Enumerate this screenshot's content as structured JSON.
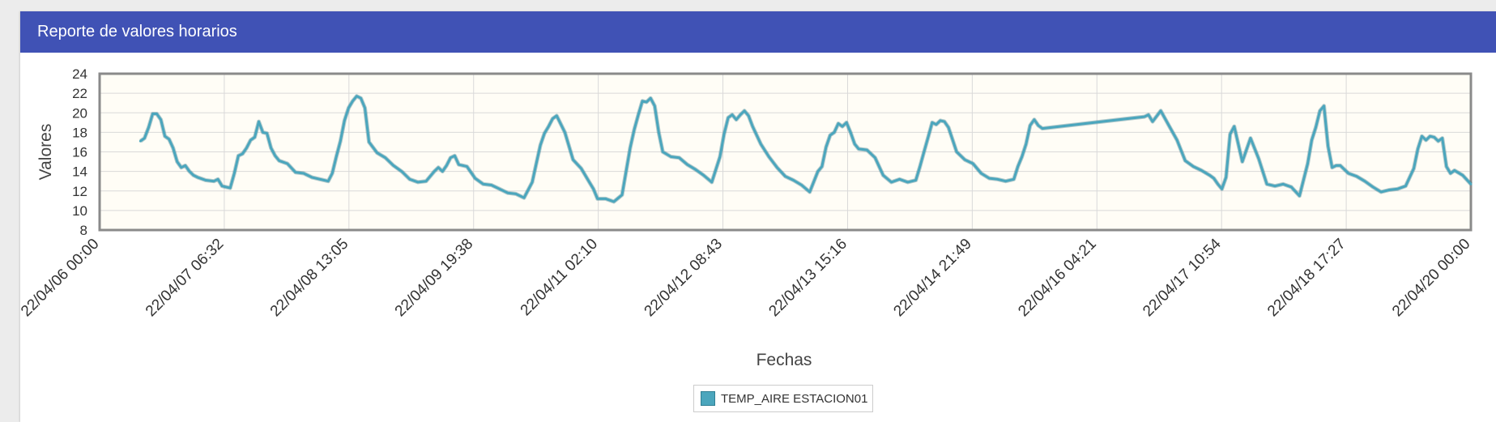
{
  "panel": {
    "title": "Reporte de valores horarios"
  },
  "colors": {
    "header": "#4052b5",
    "series": "#4ba6bd",
    "plot_background": "#fffdf6",
    "grid": "#d9d9d9",
    "frame": "#8a8a8a"
  },
  "chart_data": {
    "type": "line",
    "title": "",
    "xlabel": "Fechas",
    "ylabel": "Valores",
    "ylim": [
      8,
      24
    ],
    "yticks": [
      8,
      10,
      12,
      14,
      16,
      18,
      20,
      22,
      24
    ],
    "xlim": [
      "2022-04-06 00:00",
      "2022-04-20 00:00"
    ],
    "xticks": [
      "22/04/06 00:00",
      "22/04/07 06:32",
      "22/04/08 13:05",
      "22/04/09 19:38",
      "22/04/11 02:10",
      "22/04/12 08:43",
      "22/04/13 15:16",
      "22/04/14 21:49",
      "22/04/16 04:21",
      "22/04/17 10:54",
      "22/04/18 17:27",
      "22/04/20 00:00"
    ],
    "grid": true,
    "legend_position": "bottom-center",
    "series": [
      {
        "name": "TEMP_AIRE ESTACION01",
        "x": [
          "2022-04-06 10:00",
          "2022-04-06 11:00",
          "2022-04-06 12:00",
          "2022-04-06 13:00",
          "2022-04-06 14:00",
          "2022-04-06 15:00",
          "2022-04-06 16:00",
          "2022-04-06 17:00",
          "2022-04-06 18:00",
          "2022-04-06 19:00",
          "2022-04-06 20:00",
          "2022-04-06 21:00",
          "2022-04-06 22:00",
          "2022-04-06 23:00",
          "2022-04-07 00:00",
          "2022-04-07 02:00",
          "2022-04-07 04:00",
          "2022-04-07 05:00",
          "2022-04-07 06:00",
          "2022-04-07 07:00",
          "2022-04-07 08:00",
          "2022-04-07 09:00",
          "2022-04-07 10:00",
          "2022-04-07 11:00",
          "2022-04-07 12:00",
          "2022-04-07 13:00",
          "2022-04-07 14:00",
          "2022-04-07 15:00",
          "2022-04-07 16:00",
          "2022-04-07 17:00",
          "2022-04-07 18:00",
          "2022-04-07 19:00",
          "2022-04-07 20:00",
          "2022-04-07 22:00",
          "2022-04-08 00:00",
          "2022-04-08 02:00",
          "2022-04-08 04:00",
          "2022-04-08 06:00",
          "2022-04-08 08:00",
          "2022-04-08 09:00",
          "2022-04-08 10:00",
          "2022-04-08 11:00",
          "2022-04-08 12:00",
          "2022-04-08 13:00",
          "2022-04-08 14:00",
          "2022-04-08 15:00",
          "2022-04-08 16:00",
          "2022-04-08 17:00",
          "2022-04-08 18:00",
          "2022-04-08 20:00",
          "2022-04-08 22:00",
          "2022-04-09 00:00",
          "2022-04-09 02:00",
          "2022-04-09 04:00",
          "2022-04-09 06:00",
          "2022-04-09 08:00",
          "2022-04-09 10:00",
          "2022-04-09 11:00",
          "2022-04-09 12:00",
          "2022-04-09 13:00",
          "2022-04-09 14:00",
          "2022-04-09 15:00",
          "2022-04-09 16:00",
          "2022-04-09 18:00",
          "2022-04-09 20:00",
          "2022-04-09 22:00",
          "2022-04-10 00:00",
          "2022-04-10 02:00",
          "2022-04-10 04:00",
          "2022-04-10 06:00",
          "2022-04-10 08:00",
          "2022-04-10 10:00",
          "2022-04-10 11:00",
          "2022-04-10 12:00",
          "2022-04-10 13:00",
          "2022-04-10 14:00",
          "2022-04-10 15:00",
          "2022-04-10 16:00",
          "2022-04-10 18:00",
          "2022-04-10 20:00",
          "2022-04-10 22:00",
          "2022-04-11 00:00",
          "2022-04-11 01:00",
          "2022-04-11 02:00",
          "2022-04-11 04:00",
          "2022-04-11 06:00",
          "2022-04-11 08:00",
          "2022-04-11 09:00",
          "2022-04-11 10:00",
          "2022-04-11 11:00",
          "2022-04-11 12:00",
          "2022-04-11 13:00",
          "2022-04-11 14:00",
          "2022-04-11 15:00",
          "2022-04-11 16:00",
          "2022-04-11 17:00",
          "2022-04-11 18:00",
          "2022-04-11 20:00",
          "2022-04-11 22:00",
          "2022-04-12 00:00",
          "2022-04-12 02:00",
          "2022-04-12 04:00",
          "2022-04-12 06:00",
          "2022-04-12 08:00",
          "2022-04-12 09:00",
          "2022-04-12 10:00",
          "2022-04-12 11:00",
          "2022-04-12 12:00",
          "2022-04-12 13:00",
          "2022-04-12 14:00",
          "2022-04-12 15:00",
          "2022-04-12 16:00",
          "2022-04-12 18:00",
          "2022-04-12 20:00",
          "2022-04-12 22:00",
          "2022-04-13 00:00",
          "2022-04-13 02:00",
          "2022-04-13 04:00",
          "2022-04-13 06:00",
          "2022-04-13 08:00",
          "2022-04-13 09:00",
          "2022-04-13 10:00",
          "2022-04-13 11:00",
          "2022-04-13 12:00",
          "2022-04-13 13:00",
          "2022-04-13 14:00",
          "2022-04-13 15:00",
          "2022-04-13 16:00",
          "2022-04-13 17:00",
          "2022-04-13 18:00",
          "2022-04-13 20:00",
          "2022-04-13 22:00",
          "2022-04-14 00:00",
          "2022-04-14 02:00",
          "2022-04-14 04:00",
          "2022-04-14 06:00",
          "2022-04-14 08:00",
          "2022-04-14 09:00",
          "2022-04-14 10:00",
          "2022-04-14 11:00",
          "2022-04-14 12:00",
          "2022-04-14 13:00",
          "2022-04-14 14:00",
          "2022-04-14 15:00",
          "2022-04-14 16:00",
          "2022-04-14 18:00",
          "2022-04-14 20:00",
          "2022-04-14 22:00",
          "2022-04-15 00:00",
          "2022-04-15 02:00",
          "2022-04-15 04:00",
          "2022-04-15 06:00",
          "2022-04-15 08:00",
          "2022-04-15 09:00",
          "2022-04-15 10:00",
          "2022-04-15 11:00",
          "2022-04-15 12:00",
          "2022-04-15 13:00",
          "2022-04-15 14:00",
          "2022-04-15 15:00",
          "2022-04-16 16:00",
          "2022-04-16 17:00",
          "2022-04-16 18:00",
          "2022-04-16 20:00",
          "2022-04-16 22:00",
          "2022-04-17 00:00",
          "2022-04-17 02:00",
          "2022-04-17 04:00",
          "2022-04-17 06:00",
          "2022-04-17 08:00",
          "2022-04-17 09:00",
          "2022-04-17 10:00",
          "2022-04-17 11:00",
          "2022-04-17 12:00",
          "2022-04-17 13:00",
          "2022-04-17 14:00",
          "2022-04-17 16:00",
          "2022-04-17 18:00",
          "2022-04-17 20:00",
          "2022-04-17 22:00",
          "2022-04-18 00:00",
          "2022-04-18 02:00",
          "2022-04-18 04:00",
          "2022-04-18 06:00",
          "2022-04-18 08:00",
          "2022-04-18 09:00",
          "2022-04-18 10:00",
          "2022-04-18 11:00",
          "2022-04-18 12:00",
          "2022-04-18 13:00",
          "2022-04-18 14:00",
          "2022-04-18 15:00",
          "2022-04-18 16:00",
          "2022-04-18 18:00",
          "2022-04-18 20:00",
          "2022-04-18 22:00",
          "2022-04-19 00:00",
          "2022-04-19 02:00",
          "2022-04-19 04:00",
          "2022-04-19 06:00",
          "2022-04-19 08:00",
          "2022-04-19 10:00",
          "2022-04-19 11:00",
          "2022-04-19 12:00",
          "2022-04-19 13:00",
          "2022-04-19 14:00",
          "2022-04-19 15:00",
          "2022-04-19 16:00",
          "2022-04-19 17:00",
          "2022-04-19 18:00",
          "2022-04-19 19:00",
          "2022-04-19 20:00",
          "2022-04-19 22:00",
          "2022-04-20 00:00"
        ],
        "y": [
          17.1,
          17.4,
          18.5,
          19.9,
          19.9,
          19.3,
          17.6,
          17.3,
          16.4,
          15.0,
          14.4,
          14.6,
          14.0,
          13.6,
          13.4,
          13.1,
          13.0,
          13.2,
          12.5,
          12.4,
          12.3,
          13.8,
          15.6,
          15.8,
          16.4,
          17.2,
          17.5,
          19.1,
          18.0,
          17.9,
          16.4,
          15.6,
          15.1,
          14.8,
          13.9,
          13.8,
          13.4,
          13.2,
          13.0,
          13.8,
          15.5,
          17.1,
          19.2,
          20.5,
          21.2,
          21.7,
          21.5,
          20.5,
          17.0,
          15.9,
          15.4,
          14.6,
          14.0,
          13.2,
          12.9,
          13.0,
          14.0,
          14.4,
          14.0,
          14.6,
          15.4,
          15.6,
          14.7,
          14.5,
          13.3,
          12.7,
          12.6,
          12.2,
          11.8,
          11.7,
          11.3,
          12.9,
          14.8,
          16.7,
          17.9,
          18.6,
          19.4,
          19.7,
          18.0,
          15.2,
          14.3,
          12.9,
          12.2,
          11.2,
          11.2,
          10.9,
          11.6,
          14.0,
          16.4,
          18.3,
          19.8,
          21.2,
          21.1,
          21.5,
          20.7,
          18.0,
          16.0,
          15.5,
          15.4,
          14.7,
          14.2,
          13.6,
          12.9,
          15.5,
          17.8,
          19.5,
          19.8,
          19.3,
          19.8,
          20.2,
          19.7,
          18.6,
          16.8,
          15.5,
          14.4,
          13.5,
          13.1,
          12.6,
          11.9,
          14.0,
          14.5,
          16.5,
          17.7,
          18.0,
          18.9,
          18.6,
          19.0,
          18.0,
          16.8,
          16.3,
          16.2,
          15.4,
          13.6,
          12.9,
          13.2,
          12.9,
          13.1,
          14.5,
          16.0,
          17.5,
          19.0,
          18.8,
          19.2,
          19.1,
          18.5,
          16.0,
          15.2,
          14.8,
          13.8,
          13.3,
          13.2,
          13.0,
          13.2,
          14.5,
          15.5,
          16.8,
          18.7,
          19.3,
          18.7,
          18.4,
          19.6,
          19.8,
          19.1,
          20.2,
          18.7,
          17.2,
          15.1,
          14.5,
          14.1,
          13.6,
          13.3,
          12.7,
          12.2,
          13.4,
          17.8,
          18.6,
          15.0,
          17.4,
          15.3,
          12.7,
          12.5,
          12.7,
          12.4,
          11.5,
          14.8,
          17.2,
          18.5,
          20.2,
          20.7,
          16.6,
          14.4,
          14.6,
          14.6,
          13.8,
          13.5,
          13.0,
          12.4,
          11.9,
          12.1,
          12.2,
          12.5,
          14.3,
          16.3,
          17.6,
          17.2,
          17.6,
          17.5,
          17.1,
          17.4,
          14.5,
          13.8,
          14.1,
          13.6,
          12.7
        ]
      }
    ]
  },
  "legend": {
    "label": "TEMP_AIRE ESTACION01"
  }
}
